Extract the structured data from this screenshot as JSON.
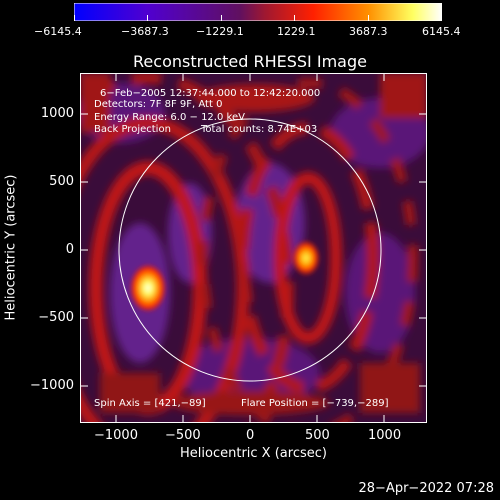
{
  "colorbar": {
    "ticks": [
      "−6145.4",
      "−3687.3",
      "−1229.1",
      "1229.1",
      "3687.3",
      "6145.4"
    ],
    "range": [
      -6145.4,
      6145.4
    ],
    "colors": [
      "#0000ff",
      "#5a00c8",
      "#8a2a8a",
      "#b41e1e",
      "#ff3c00",
      "#ff9600",
      "#ffff64",
      "#ffffff"
    ]
  },
  "plot": {
    "title": "Reconstructed RHESSI Image",
    "xlabel": "Heliocentric X (arcsec)",
    "ylabel": "Heliocentric Y (arcsec)",
    "xticks": [
      "−1000",
      "−500",
      "0",
      "500",
      "1000"
    ],
    "yticks": [
      "1000",
      "500",
      "0",
      "−500",
      "−1000"
    ],
    "xrange": [
      -1290,
      1300
    ],
    "yrange": [
      -1280,
      1190
    ],
    "solar_limb_radius_arcsec": 975,
    "annotations": {
      "time": "6−Feb−2005 12:37:44.000 to 12:42:20.000",
      "detectors": "Detectors: 7F 8F 9F, Att 0",
      "energy": "Energy Range: 6.0 − 12.0 keV",
      "method": "Back Projection",
      "counts": "Total counts: 8.74E+03",
      "spin_axis": "Spin Axis = [421,−89]",
      "flare_position": "Flare Position = [−739,−289]"
    },
    "sources": [
      {
        "name": "flare source",
        "x": -739,
        "y": -289
      },
      {
        "name": "spin axis source",
        "x": 421,
        "y": -89
      }
    ]
  },
  "footer": {
    "timestamp": "28−Apr−2022 07:28"
  }
}
